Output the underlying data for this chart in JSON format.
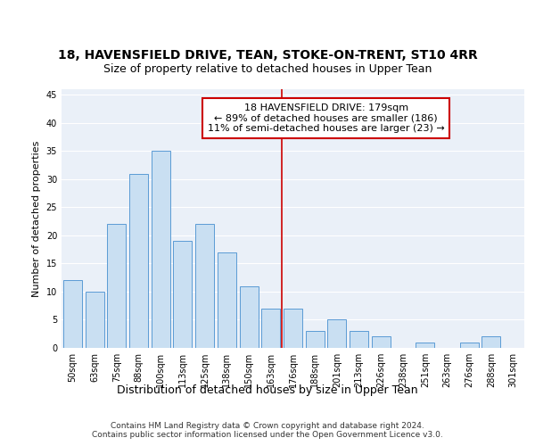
{
  "title1": "18, HAVENSFIELD DRIVE, TEAN, STOKE-ON-TRENT, ST10 4RR",
  "title2": "Size of property relative to detached houses in Upper Tean",
  "xlabel": "Distribution of detached houses by size in Upper Tean",
  "ylabel": "Number of detached properties",
  "categories": [
    "50sqm",
    "63sqm",
    "75sqm",
    "88sqm",
    "100sqm",
    "113sqm",
    "125sqm",
    "138sqm",
    "150sqm",
    "163sqm",
    "176sqm",
    "188sqm",
    "201sqm",
    "213sqm",
    "226sqm",
    "238sqm",
    "251sqm",
    "263sqm",
    "276sqm",
    "288sqm",
    "301sqm"
  ],
  "values": [
    12,
    10,
    22,
    31,
    35,
    19,
    22,
    17,
    11,
    7,
    7,
    3,
    5,
    3,
    2,
    0,
    1,
    0,
    1,
    2,
    0
  ],
  "bar_color": "#c9dff2",
  "bar_edge_color": "#5b9bd5",
  "vline_pos": 9.5,
  "vline_color": "#cc0000",
  "annotation_text": "18 HAVENSFIELD DRIVE: 179sqm\n← 89% of detached houses are smaller (186)\n11% of semi-detached houses are larger (23) →",
  "annotation_box_color": "#ffffff",
  "annotation_box_edge_color": "#cc0000",
  "ylim": [
    0,
    46
  ],
  "yticks": [
    0,
    5,
    10,
    15,
    20,
    25,
    30,
    35,
    40,
    45
  ],
  "background_color": "#eaf0f8",
  "grid_color": "#ffffff",
  "footer_text": "Contains HM Land Registry data © Crown copyright and database right 2024.\nContains public sector information licensed under the Open Government Licence v3.0.",
  "title1_fontsize": 10,
  "title2_fontsize": 9,
  "xlabel_fontsize": 9,
  "ylabel_fontsize": 8,
  "tick_fontsize": 7,
  "annotation_fontsize": 8,
  "footer_fontsize": 6.5
}
